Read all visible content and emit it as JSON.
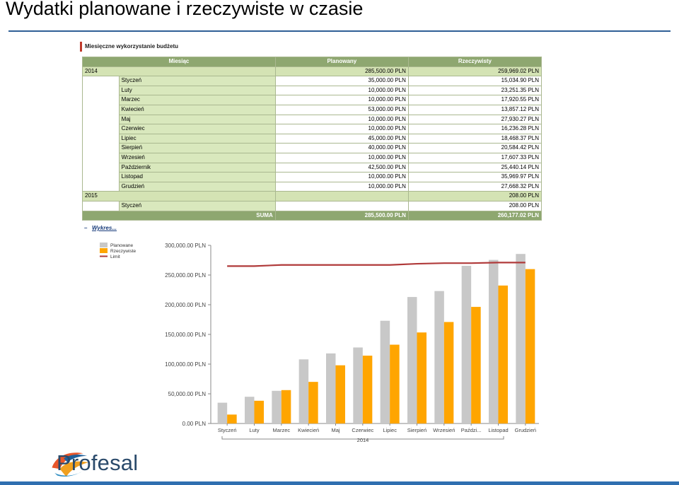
{
  "slide": {
    "title": "Wydatki planowane i rzeczywiste w czasie"
  },
  "section": {
    "heading": "Miesięczne wykorzystanie budżetu"
  },
  "table": {
    "headers": {
      "month": "Miesiąc",
      "planned": "Planowany",
      "actual": "Rzeczywisty"
    },
    "groups": [
      {
        "year": "2014",
        "planned": "285,500.00 PLN",
        "actual": "259,969.02 PLN",
        "rows": [
          {
            "month": "Styczeń",
            "planned": "35,000.00 PLN",
            "actual": "15,034.90 PLN"
          },
          {
            "month": "Luty",
            "planned": "10,000.00 PLN",
            "actual": "23,251.35 PLN"
          },
          {
            "month": "Marzec",
            "planned": "10,000.00 PLN",
            "actual": "17,920.55 PLN"
          },
          {
            "month": "Kwiecień",
            "planned": "53,000.00 PLN",
            "actual": "13,857.12 PLN"
          },
          {
            "month": "Maj",
            "planned": "10,000.00 PLN",
            "actual": "27,930.27 PLN"
          },
          {
            "month": "Czerwiec",
            "planned": "10,000.00 PLN",
            "actual": "16,236.28 PLN"
          },
          {
            "month": "Lipiec",
            "planned": "45,000.00 PLN",
            "actual": "18,468.37 PLN"
          },
          {
            "month": "Sierpień",
            "planned": "40,000.00 PLN",
            "actual": "20,584.42 PLN"
          },
          {
            "month": "Wrzesień",
            "planned": "10,000.00 PLN",
            "actual": "17,607.33 PLN"
          },
          {
            "month": "Październik",
            "planned": "42,500.00 PLN",
            "actual": "25,440.14 PLN"
          },
          {
            "month": "Listopad",
            "planned": "10,000.00 PLN",
            "actual": "35,969.97 PLN"
          },
          {
            "month": "Grudzień",
            "planned": "10,000.00 PLN",
            "actual": "27,668.32 PLN"
          }
        ]
      },
      {
        "year": "2015",
        "planned": "",
        "actual": "208.00 PLN",
        "rows": [
          {
            "month": "Styczeń",
            "planned": "",
            "actual": "208.00 PLN"
          }
        ]
      }
    ],
    "sum": {
      "label": "SUMA",
      "planned": "285,500.00 PLN",
      "actual": "260,177.02 PLN"
    }
  },
  "chart_toggle": {
    "icon": "minus-icon",
    "label": "Wykres..."
  },
  "chart_data": {
    "type": "bar",
    "title": "",
    "xlabel": "",
    "ylabel": "",
    "ylim": [
      0,
      300000
    ],
    "yticks": [
      0,
      50000,
      100000,
      150000,
      200000,
      250000,
      300000
    ],
    "ytick_labels": [
      "0.00 PLN",
      "50,000.00 PLN",
      "100,000.00 PLN",
      "150,000.00 PLN",
      "200,000.00 PLN",
      "250,000.00 PLN",
      "300,000.00 PLN"
    ],
    "categories": [
      "Styczeń",
      "Luty",
      "Marzec",
      "Kwiecień",
      "Maj",
      "Czerwiec",
      "Lipiec",
      "Sierpień",
      "Wrzesień",
      "Paździ...",
      "Listopad",
      "Grudzień"
    ],
    "group_label": "2014",
    "legend_position": "top-left",
    "series": [
      {
        "name": "Planowane",
        "type": "bar",
        "color": "#c8c8c8",
        "values": [
          35000,
          45000,
          55000,
          108000,
          118000,
          128000,
          173000,
          213000,
          223000,
          265500,
          275500,
          285500
        ]
      },
      {
        "name": "Rzeczywiste",
        "type": "bar",
        "color": "#ffa500",
        "values": [
          15034.9,
          38286.25,
          56206.8,
          70063.92,
          97994.19,
          114230.47,
          132698.84,
          153283.26,
          170890.59,
          196330.73,
          232300.7,
          259969.02
        ]
      },
      {
        "name": "Limit",
        "type": "line",
        "color": "#b03a3a",
        "values": [
          265000,
          265000,
          267000,
          267000,
          267000,
          267000,
          267000,
          269000,
          270000,
          270000,
          271000,
          271000
        ]
      }
    ]
  },
  "brand": {
    "name": "Profesal",
    "logo_icon": "profesal-swirl-icon"
  }
}
